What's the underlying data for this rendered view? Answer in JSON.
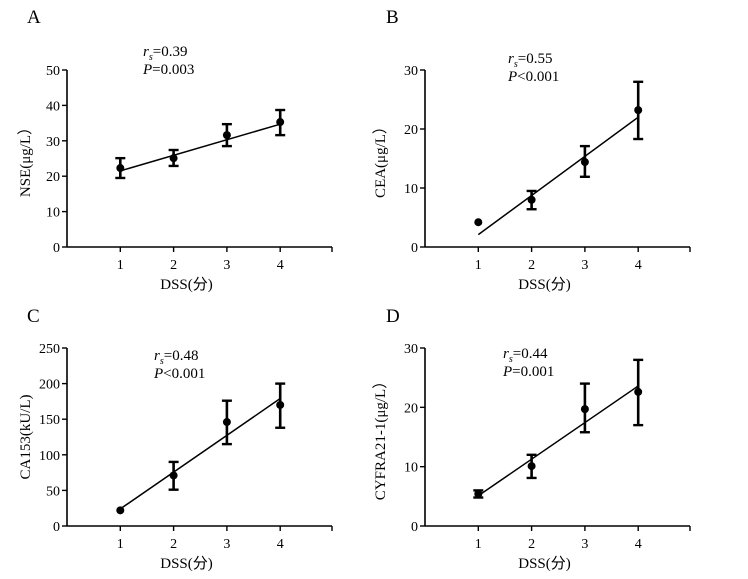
{
  "chart_data": [
    {
      "type": "scatter",
      "panel": "A",
      "xlabel": "DSS(分)",
      "ylabel": "NSE(μg/L）",
      "x_ticks": [
        1,
        2,
        3,
        4
      ],
      "xlim": [
        0,
        5
      ],
      "y_ticks": [
        0,
        10,
        20,
        30,
        40,
        50
      ],
      "ylim": [
        0,
        50
      ],
      "points": [
        {
          "x": 1,
          "y": 22.3,
          "err_low": 19.5,
          "err_high": 25.1
        },
        {
          "x": 2,
          "y": 25.1,
          "err_low": 22.9,
          "err_high": 27.4
        },
        {
          "x": 3,
          "y": 31.6,
          "err_low": 28.5,
          "err_high": 34.7
        },
        {
          "x": 4,
          "y": 35.3,
          "err_low": 31.6,
          "err_high": 38.7
        }
      ],
      "fit_line": {
        "x": [
          1,
          4
        ],
        "y": [
          21.5,
          34.7
        ]
      },
      "annotation": {
        "r_label": "r",
        "r_sub": "s",
        "r_value": "=0.39",
        "p_label": "P",
        "p_value": "=0.003"
      }
    },
    {
      "type": "scatter",
      "panel": "B",
      "xlabel": "DSS(分)",
      "ylabel": "CEA(μg/L）",
      "x_ticks": [
        1,
        2,
        3,
        4
      ],
      "xlim": [
        0,
        5
      ],
      "y_ticks": [
        0,
        10,
        20,
        30
      ],
      "ylim": [
        0,
        30
      ],
      "points": [
        {
          "x": 1,
          "y": 4.2,
          "err_low": 4.2,
          "err_high": 4.2
        },
        {
          "x": 2,
          "y": 8.0,
          "err_low": 6.4,
          "err_high": 9.5
        },
        {
          "x": 3,
          "y": 14.4,
          "err_low": 11.9,
          "err_high": 17.1
        },
        {
          "x": 4,
          "y": 23.2,
          "err_low": 18.3,
          "err_high": 28.0
        }
      ],
      "fit_line": {
        "x": [
          1,
          4
        ],
        "y": [
          2.1,
          22.0
        ]
      },
      "annotation": {
        "r_label": "r",
        "r_sub": "s",
        "r_value": "=0.55",
        "p_label": "P",
        "p_value": "<0.001"
      }
    },
    {
      "type": "scatter",
      "panel": "C",
      "xlabel": "DSS(分)",
      "ylabel": "CA153(kU/L)",
      "x_ticks": [
        1,
        2,
        3,
        4
      ],
      "xlim": [
        0,
        5
      ],
      "y_ticks": [
        0,
        50,
        100,
        150,
        200,
        250
      ],
      "ylim": [
        0,
        250
      ],
      "points": [
        {
          "x": 1,
          "y": 22,
          "err_low": 22,
          "err_high": 22
        },
        {
          "x": 2,
          "y": 71,
          "err_low": 51,
          "err_high": 90
        },
        {
          "x": 3,
          "y": 146,
          "err_low": 115,
          "err_high": 176
        },
        {
          "x": 4,
          "y": 170,
          "err_low": 138,
          "err_high": 200
        }
      ],
      "fit_line": {
        "x": [
          1,
          4
        ],
        "y": [
          24,
          179
        ]
      },
      "annotation": {
        "r_label": "r",
        "r_sub": "s",
        "r_value": "=0.48",
        "p_label": "P",
        "p_value": "<0.001"
      }
    },
    {
      "type": "scatter",
      "panel": "D",
      "xlabel": "DSS(分)",
      "ylabel": "CYFRA21-1(μg/L）",
      "x_ticks": [
        1,
        2,
        3,
        4
      ],
      "xlim": [
        0,
        5
      ],
      "y_ticks": [
        0,
        10,
        20,
        30
      ],
      "ylim": [
        0,
        30
      ],
      "points": [
        {
          "x": 1,
          "y": 5.4,
          "err_low": 4.8,
          "err_high": 6.0
        },
        {
          "x": 2,
          "y": 10.1,
          "err_low": 8.1,
          "err_high": 12.0
        },
        {
          "x": 3,
          "y": 19.7,
          "err_low": 15.8,
          "err_high": 24.0
        },
        {
          "x": 4,
          "y": 22.6,
          "err_low": 17.0,
          "err_high": 28.0
        }
      ],
      "fit_line": {
        "x": [
          1,
          4
        ],
        "y": [
          5.1,
          23.6
        ]
      },
      "annotation": {
        "r_label": "r",
        "r_sub": "s",
        "r_value": "=0.44",
        "p_label": "P",
        "p_value": "=0.001"
      }
    }
  ]
}
